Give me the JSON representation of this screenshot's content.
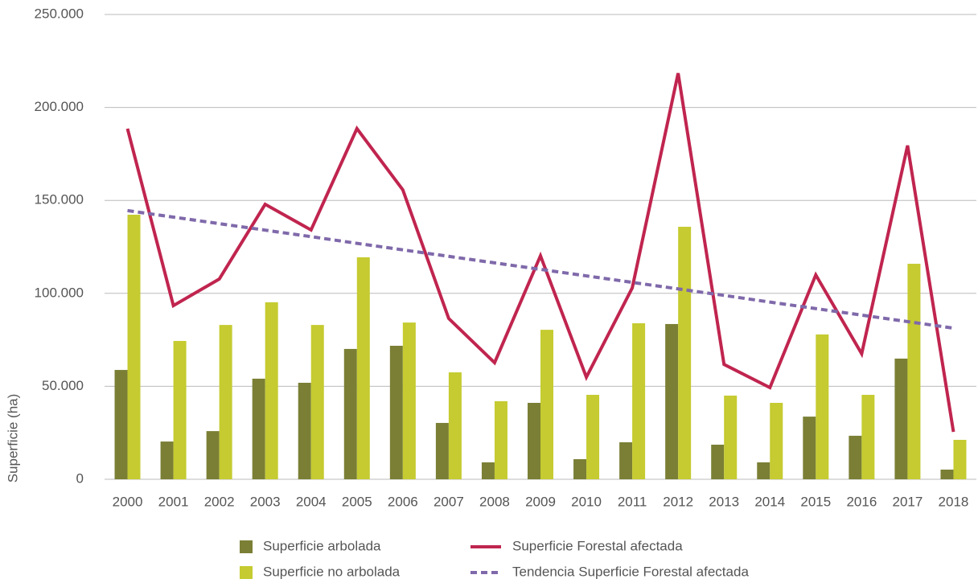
{
  "chart_data": {
    "type": "bar",
    "y_label": "Superficie (ha)",
    "categories": [
      "2000",
      "2001",
      "2002",
      "2003",
      "2004",
      "2005",
      "2006",
      "2007",
      "2008",
      "2009",
      "2010",
      "2011",
      "2012",
      "2013",
      "2014",
      "2015",
      "2016",
      "2017",
      "2018"
    ],
    "series": [
      {
        "name": "Superficie arbolada",
        "type": "bar",
        "color": "#7a7f35",
        "values": [
          58800,
          20300,
          25900,
          54100,
          51900,
          70100,
          71800,
          30300,
          9100,
          41100,
          10800,
          19900,
          83500,
          18600,
          9100,
          33700,
          23400,
          64900,
          5200
        ]
      },
      {
        "name": "Superficie no arbolada",
        "type": "bar",
        "color": "#c5cb30",
        "values": [
          142300,
          74400,
          83000,
          95200,
          83000,
          119400,
          84300,
          57500,
          42000,
          80400,
          45400,
          83900,
          135800,
          45000,
          41100,
          77900,
          45400,
          115900,
          21200
        ]
      },
      {
        "name": "Superficie Forestal afectada",
        "type": "line",
        "color": "#c0254f",
        "dashed": false,
        "values": [
          188600,
          93400,
          107700,
          147900,
          134100,
          188600,
          155700,
          86500,
          62700,
          120200,
          54900,
          102900,
          218400,
          61800,
          49300,
          109900,
          67500,
          179500,
          25500
        ]
      },
      {
        "name": "Tendencia Superficie Forestal afectada",
        "type": "line",
        "color": "#7f69aa",
        "dashed": true,
        "values": [
          144500,
          141000,
          137500,
          134000,
          130500,
          126900,
          123400,
          119900,
          116400,
          112900,
          109400,
          105900,
          102400,
          98900,
          95300,
          91800,
          88300,
          84800,
          81300
        ]
      }
    ],
    "ylim": [
      0,
      250000
    ],
    "yticks": [
      0,
      {
        "value": 50000,
        "label": "50.000"
      },
      {
        "value": 100000,
        "label": "100.000"
      },
      {
        "value": 150000,
        "label": "150.000"
      },
      {
        "value": 200000,
        "label": "200.000"
      },
      {
        "value": 250000,
        "label": "250.000"
      }
    ],
    "grid": true
  }
}
